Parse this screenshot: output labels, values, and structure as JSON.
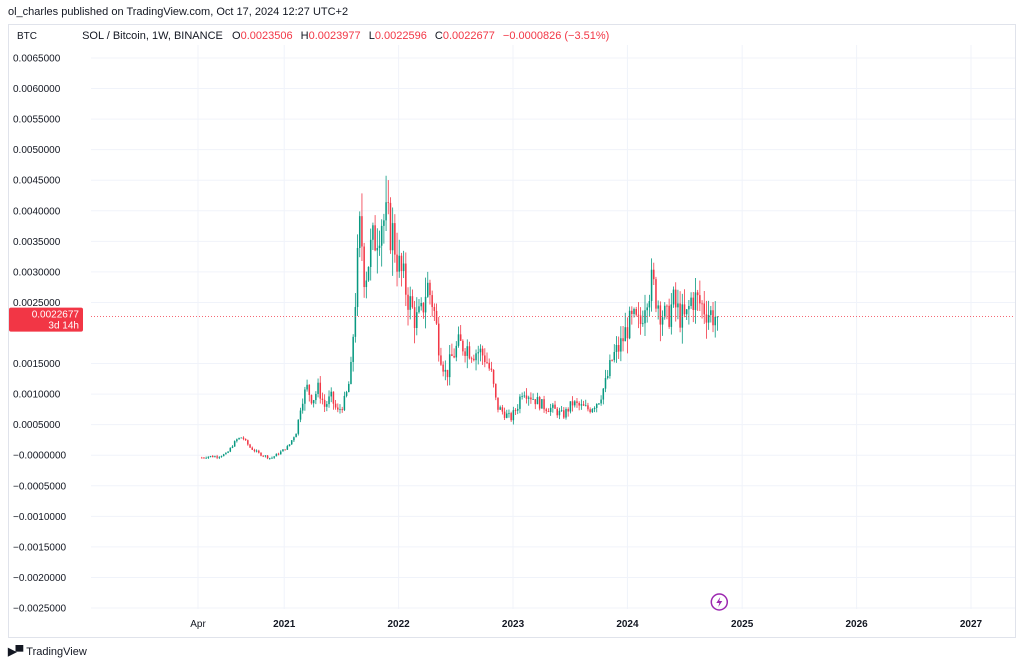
{
  "header": {
    "text": "ol_charles published on TradingView.com, Oct 17, 2024 12:27 UTC+2"
  },
  "symbol_bar": {
    "currency": "BTC",
    "title": "SOL / Bitcoin, 1W, BINANCE",
    "open_label": "O",
    "open": "0.0023506",
    "high_label": "H",
    "high": "0.0023977",
    "low_label": "L",
    "low": "0.0022596",
    "close_label": "C",
    "close": "0.0022677",
    "change": "−0.0000826 (−3.51%)"
  },
  "price_tag": {
    "price": "0.0022677",
    "countdown": "3d 14h",
    "color": "#f23645"
  },
  "footer": {
    "brand": "TradingView"
  },
  "colors": {
    "up": "#089981",
    "down": "#f23645",
    "grid": "#f0f3fa"
  },
  "icons": {
    "bolt": "lightning-bolt-icon"
  },
  "chart_data": {
    "type": "candlestick",
    "title": "SOL / Bitcoin, 1W, BINANCE",
    "ylim": [
      -0.0025,
      0.0065
    ],
    "y_ticks": [
      "0.0065000",
      "0.0060000",
      "0.0055000",
      "0.0050000",
      "0.0045000",
      "0.0040000",
      "0.0035000",
      "0.0030000",
      "0.0025000",
      "0.0015000",
      "0.0010000",
      "0.0005000",
      "−0.0000000",
      "−0.0005000",
      "−0.0010000",
      "−0.0015000",
      "−0.0020000",
      "−0.0025000"
    ],
    "y_tick_values": [
      0.0065,
      0.006,
      0.0055,
      0.005,
      0.0045,
      0.004,
      0.0035,
      0.003,
      0.0025,
      0.0015,
      0.001,
      0.0005,
      0,
      -0.0005,
      -0.001,
      -0.0015,
      -0.002,
      -0.0025
    ],
    "x_ticks": [
      "Apr",
      "2021",
      "2022",
      "2023",
      "2024",
      "2025",
      "2026",
      "2027"
    ],
    "x_tick_dates": [
      "2020-04-01",
      "2021-01-01",
      "2022-01-01",
      "2023-01-01",
      "2024-01-01",
      "2025-01-01",
      "2026-01-01",
      "2027-01-01"
    ],
    "last_price": 0.0022677,
    "price_path": [
      [
        "2020-04-13",
        -4e-05
      ],
      [
        "2020-05-01",
        -2e-05
      ],
      [
        "2020-06-01",
        -2e-05
      ],
      [
        "2020-07-01",
        2e-05
      ],
      [
        "2020-08-01",
        0.00025
      ],
      [
        "2020-08-20",
        0.0003
      ],
      [
        "2020-09-15",
        0.00012
      ],
      [
        "2020-10-15",
        2e-05
      ],
      [
        "2020-11-20",
        -5e-05
      ],
      [
        "2020-12-20",
        5e-05
      ],
      [
        "2021-01-15",
        0.00015
      ],
      [
        "2021-02-10",
        0.0004
      ],
      [
        "2021-02-25",
        0.0009
      ],
      [
        "2021-03-15",
        0.0011
      ],
      [
        "2021-04-01",
        0.0009
      ],
      [
        "2021-04-20",
        0.0011
      ],
      [
        "2021-05-10",
        0.0008
      ],
      [
        "2021-05-30",
        0.00095
      ],
      [
        "2021-06-20",
        0.0007
      ],
      [
        "2021-07-15",
        0.0009
      ],
      [
        "2021-08-01",
        0.0013
      ],
      [
        "2021-08-15",
        0.0025
      ],
      [
        "2021-09-01",
        0.0038
      ],
      [
        "2021-09-15",
        0.0029
      ],
      [
        "2021-10-01",
        0.0033
      ],
      [
        "2021-10-20",
        0.0036
      ],
      [
        "2021-11-05",
        0.0039
      ],
      [
        "2021-11-25",
        0.0038
      ],
      [
        "2021-12-15",
        0.0036
      ],
      [
        "2022-01-01",
        0.0031
      ],
      [
        "2022-01-20",
        0.0028
      ],
      [
        "2022-02-05",
        0.0025
      ],
      [
        "2022-02-25",
        0.0022
      ],
      [
        "2022-03-15",
        0.0023
      ],
      [
        "2022-04-01",
        0.0028
      ],
      [
        "2022-04-20",
        0.0025
      ],
      [
        "2022-05-10",
        0.0018
      ],
      [
        "2022-06-01",
        0.0013
      ],
      [
        "2022-06-20",
        0.0016
      ],
      [
        "2022-07-10",
        0.0018
      ],
      [
        "2022-08-01",
        0.0018
      ],
      [
        "2022-08-25",
        0.0017
      ],
      [
        "2022-09-15",
        0.0017
      ],
      [
        "2022-10-05",
        0.0016
      ],
      [
        "2022-10-25",
        0.0013
      ],
      [
        "2022-11-10",
        0.0008
      ],
      [
        "2022-12-01",
        0.0007
      ],
      [
        "2022-12-25",
        0.0006
      ],
      [
        "2023-01-15",
        0.0008
      ],
      [
        "2023-02-01",
        0.0011
      ],
      [
        "2023-02-20",
        0.001
      ],
      [
        "2023-03-15",
        0.0009
      ],
      [
        "2023-04-10",
        0.0008
      ],
      [
        "2023-05-10",
        0.00075
      ],
      [
        "2023-06-10",
        0.00065
      ],
      [
        "2023-07-10",
        0.00085
      ],
      [
        "2023-08-01",
        0.0008
      ],
      [
        "2023-09-01",
        0.00075
      ],
      [
        "2023-10-01",
        0.0009
      ],
      [
        "2023-10-25",
        0.0012
      ],
      [
        "2023-11-15",
        0.0016
      ],
      [
        "2023-12-10",
        0.0018
      ],
      [
        "2024-01-01",
        0.0021
      ],
      [
        "2024-01-20",
        0.0022
      ],
      [
        "2024-02-10",
        0.0021
      ],
      [
        "2024-03-01",
        0.0027
      ],
      [
        "2024-03-20",
        0.0028
      ],
      [
        "2024-04-15",
        0.0024
      ],
      [
        "2024-05-05",
        0.0022
      ],
      [
        "2024-05-25",
        0.0025
      ],
      [
        "2024-06-15",
        0.0023
      ],
      [
        "2024-07-05",
        0.0022
      ],
      [
        "2024-07-25",
        0.0026
      ],
      [
        "2024-08-15",
        0.0025
      ],
      [
        "2024-09-05",
        0.0024
      ],
      [
        "2024-09-25",
        0.0023
      ],
      [
        "2024-10-14",
        0.0022677
      ]
    ]
  }
}
